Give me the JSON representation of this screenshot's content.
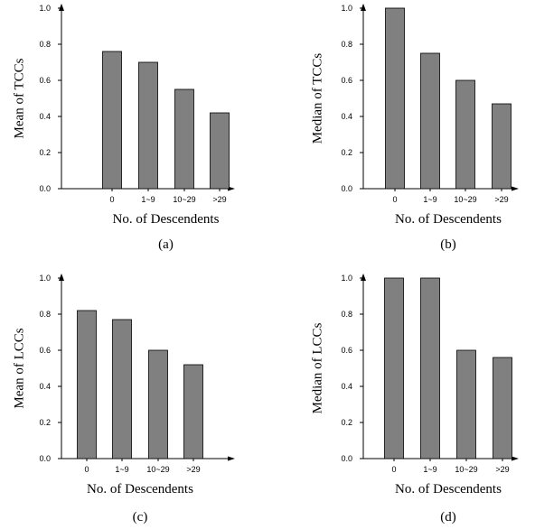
{
  "colors": {
    "bar": "#808080",
    "bar_edge": "#000000",
    "axis": "#000000"
  },
  "chart_data": [
    {
      "type": "bar",
      "categories": [
        "0",
        "1~9",
        "10~29",
        ">29"
      ],
      "values": [
        0.76,
        0.7,
        0.55,
        0.42
      ],
      "xlabel": "No. of Descendents",
      "ylabel": "Mean of TCCs",
      "ylim": [
        0,
        1.0
      ],
      "yticks": [
        "0.0",
        "0.2",
        "0.4",
        "0.6",
        "0.8",
        "1.0"
      ],
      "panel_label": "(a)",
      "grid": false
    },
    {
      "type": "bar",
      "categories": [
        "0",
        "1~9",
        "10~29",
        ">29"
      ],
      "values": [
        1.0,
        0.75,
        0.6,
        0.47
      ],
      "xlabel": "No. of Descendents",
      "ylabel": "Median of TCCs",
      "ylim": [
        0,
        1.0
      ],
      "yticks": [
        "0.0",
        "0.2",
        "0.4",
        "0.6",
        "0.8",
        "1.0"
      ],
      "panel_label": "(b)",
      "grid": false
    },
    {
      "type": "bar",
      "categories": [
        "0",
        "1~9",
        "10~29",
        ">29"
      ],
      "values": [
        0.82,
        0.77,
        0.6,
        0.52
      ],
      "xlabel": "No. of Descendents",
      "ylabel": "Mean of LCCs",
      "ylim": [
        0,
        1.0
      ],
      "yticks": [
        "0.0",
        "0.2",
        "0.4",
        "0.6",
        "0.8",
        "1.0"
      ],
      "panel_label": "(c)",
      "grid": false
    },
    {
      "type": "bar",
      "categories": [
        "0",
        "1~9",
        "10~29",
        ">29"
      ],
      "values": [
        1.0,
        1.0,
        0.6,
        0.56
      ],
      "xlabel": "No. of Descendents",
      "ylabel": "Median of LCCs",
      "ylim": [
        0,
        1.0
      ],
      "yticks": [
        "0.0",
        "0.2",
        "0.4",
        "0.6",
        "0.8",
        "1.0"
      ],
      "panel_label": "(d)",
      "grid": false
    }
  ]
}
